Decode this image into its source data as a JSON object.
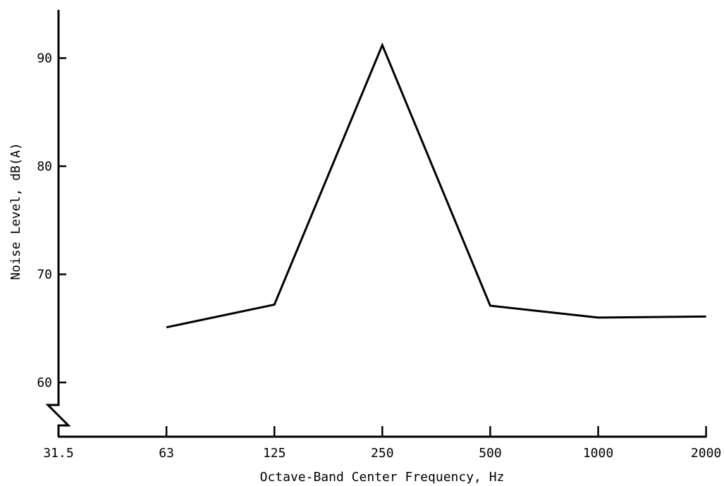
{
  "chart_data": {
    "type": "line",
    "title": "",
    "xlabel": "Octave-Band Center Frequency, Hz",
    "ylabel": "Noise Level, dB(A)",
    "x_scale": "log2",
    "categories": [
      "31.5",
      "63",
      "125",
      "250",
      "500",
      "1000",
      "2000"
    ],
    "yticks": [
      60,
      70,
      80,
      90
    ],
    "ylim": [
      55,
      95
    ],
    "axis_break": "y",
    "grid": false,
    "legend": "none",
    "series": [
      {
        "x": [
          "63",
          "125",
          "250",
          "500",
          "1000",
          "2000"
        ],
        "values": [
          65.1,
          67.2,
          91.2,
          67.1,
          66.0,
          66.1
        ]
      }
    ]
  }
}
